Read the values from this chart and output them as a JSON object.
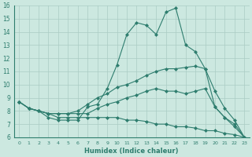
{
  "xlabel": "Humidex (Indice chaleur)",
  "background_color": "#cce8e0",
  "line_color": "#2e7d6e",
  "grid_color": "#aaccc4",
  "xlim": [
    -0.5,
    23.5
  ],
  "ylim": [
    6,
    16
  ],
  "xticks": [
    0,
    1,
    2,
    3,
    4,
    5,
    6,
    7,
    8,
    9,
    10,
    11,
    12,
    13,
    14,
    15,
    16,
    17,
    18,
    19,
    20,
    21,
    22,
    23
  ],
  "yticks": [
    6,
    7,
    8,
    9,
    10,
    11,
    12,
    13,
    14,
    15,
    16
  ],
  "series": [
    [
      8.7,
      8.2,
      8.0,
      7.5,
      7.3,
      7.3,
      7.3,
      8.3,
      8.5,
      9.7,
      11.5,
      13.8,
      14.7,
      14.5,
      13.8,
      15.5,
      15.8,
      13.0,
      12.5,
      11.2,
      9.5,
      8.2,
      7.3,
      6.0
    ],
    [
      8.7,
      8.2,
      8.0,
      7.8,
      7.8,
      7.8,
      8.0,
      8.5,
      9.0,
      9.3,
      9.8,
      10.0,
      10.3,
      10.7,
      11.0,
      11.2,
      11.2,
      11.3,
      11.4,
      11.2,
      8.3,
      7.5,
      6.8,
      6.0
    ],
    [
      8.7,
      8.2,
      8.0,
      7.8,
      7.8,
      7.8,
      7.8,
      7.8,
      8.2,
      8.5,
      8.7,
      9.0,
      9.2,
      9.5,
      9.7,
      9.5,
      9.5,
      9.3,
      9.5,
      9.7,
      8.3,
      7.5,
      7.0,
      6.0
    ],
    [
      8.7,
      8.2,
      8.0,
      7.8,
      7.5,
      7.5,
      7.5,
      7.5,
      7.5,
      7.5,
      7.5,
      7.3,
      7.3,
      7.2,
      7.0,
      7.0,
      6.8,
      6.8,
      6.7,
      6.5,
      6.5,
      6.3,
      6.2,
      6.0
    ]
  ]
}
